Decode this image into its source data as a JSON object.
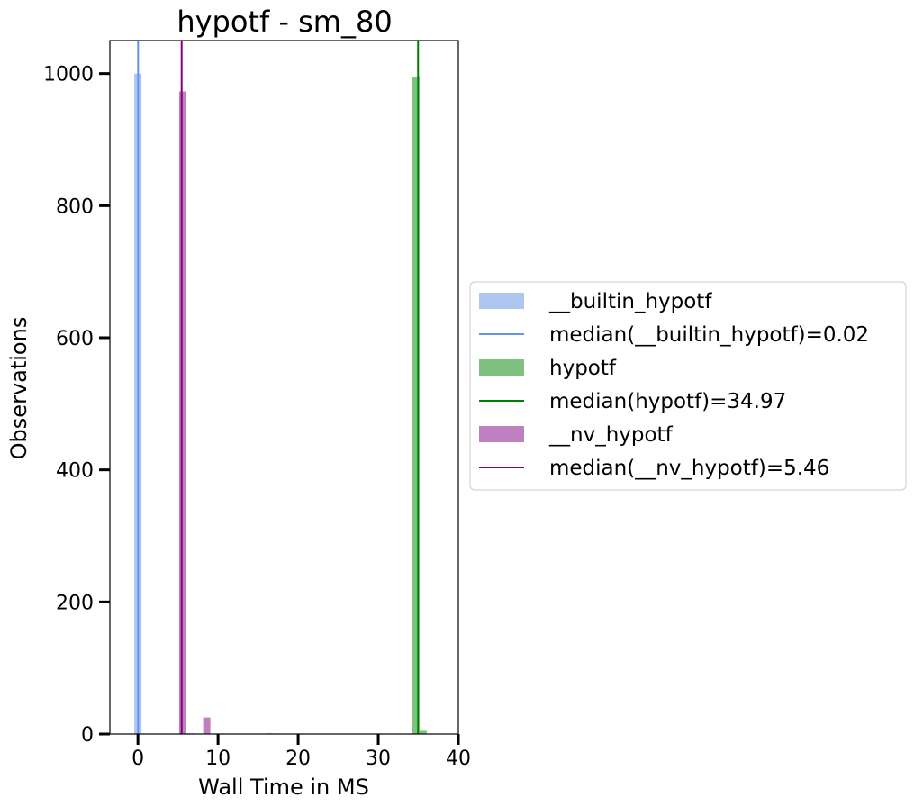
{
  "chart_data": {
    "type": "histogram",
    "title": "hypotf - sm_80",
    "xlabel": "Wall Time in MS",
    "ylabel": "Observations",
    "xlim": [
      -3.5,
      40
    ],
    "ylim": [
      0,
      1050
    ],
    "xticks": [
      0,
      10,
      20,
      30,
      40
    ],
    "yticks": [
      0,
      200,
      400,
      600,
      800,
      1000
    ],
    "grid": false,
    "legend_placement": "outside-right",
    "bar_width": 0.9,
    "series": [
      {
        "name": "__builtin_hypotf",
        "color": "#aec7f0",
        "bars": [
          {
            "x": 0.0,
            "y": 1000
          }
        ]
      },
      {
        "name": "hypotf",
        "color": "#80c080",
        "bars": [
          {
            "x": 34.7,
            "y": 995
          },
          {
            "x": 35.6,
            "y": 5
          }
        ]
      },
      {
        "name": "__nv_hypotf",
        "color": "#bf80bf",
        "bars": [
          {
            "x": 5.6,
            "y": 973
          },
          {
            "x": 8.6,
            "y": 25
          },
          {
            "x": 6.5,
            "y": 1
          },
          {
            "x": 16.4,
            "y": 1
          }
        ]
      }
    ],
    "medians": [
      {
        "label": "median(__builtin_hypotf)=0.02",
        "value": 0.02,
        "color": "#6495ed"
      },
      {
        "label": "median(hypotf)=34.97",
        "value": 34.97,
        "color": "#008000"
      },
      {
        "label": "median(__nv_hypotf)=5.46",
        "value": 5.46,
        "color": "#800080"
      }
    ],
    "legend": [
      {
        "label": "__builtin_hypotf",
        "kind": "patch",
        "color": "#aec7f0"
      },
      {
        "label": "median(__builtin_hypotf)=0.02",
        "kind": "line",
        "color": "#6495ed"
      },
      {
        "label": "hypotf",
        "kind": "patch",
        "color": "#80c080"
      },
      {
        "label": "median(hypotf)=34.97",
        "kind": "line",
        "color": "#008000"
      },
      {
        "label": "__nv_hypotf",
        "kind": "patch",
        "color": "#bf80bf"
      },
      {
        "label": "median(__nv_hypotf)=5.46",
        "kind": "line",
        "color": "#800080"
      }
    ]
  }
}
